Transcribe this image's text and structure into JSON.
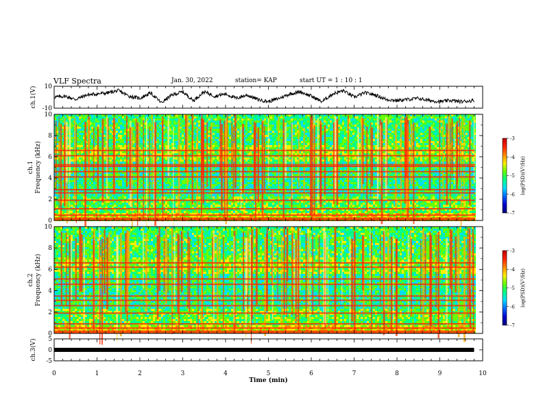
{
  "header": {
    "title": "VLF Spectra",
    "date": "Jan. 30, 2022",
    "station": "station= KAP",
    "start": "start  UT =   1  : 10 : 1"
  },
  "colorbar": {
    "label": "log(PSD)(V²/Hz)",
    "ticks": [
      "-3",
      "-4",
      "-5",
      "-6",
      "-7"
    ],
    "colors": [
      "#c00000",
      "#ff2000",
      "#ff8800",
      "#ffee00",
      "#66ff00",
      "#00ff88",
      "#00ddff",
      "#0066ff",
      "#0000cc",
      "#00007a"
    ]
  },
  "chart_data": [
    {
      "type": "line",
      "ylabel": "ch.1(V)",
      "ylim": [
        -10,
        10
      ],
      "yticks": [
        "10",
        "-10"
      ],
      "xlim": [
        0,
        10
      ],
      "x": [
        0,
        0.25,
        0.5,
        0.75,
        1,
        1.25,
        1.5,
        1.75,
        2,
        2.25,
        2.5,
        2.75,
        3,
        3.25,
        3.5,
        3.75,
        4,
        4.25,
        4.5,
        4.75,
        5,
        5.25,
        5.5,
        5.75,
        6,
        6.25,
        6.5,
        6.75,
        7,
        7.25,
        7.5,
        7.75,
        8,
        8.25,
        8.5,
        8.75,
        9,
        9.25,
        9.5,
        9.8
      ],
      "values": [
        0,
        1,
        -2,
        2,
        3,
        4,
        6,
        1,
        -1,
        4,
        -5,
        2,
        5,
        -3,
        5,
        1,
        3,
        -1,
        2,
        -2,
        -4,
        -1,
        3,
        5,
        1,
        -4,
        3,
        6,
        0,
        4,
        2,
        -2,
        -3,
        -2,
        -1,
        -3,
        -4,
        -3,
        -4,
        -3
      ]
    },
    {
      "type": "heatmap",
      "ylabel": "ch.1  Frequency  (kHz)",
      "ylim": [
        0,
        10
      ],
      "yticks": [
        "10",
        "8",
        "6",
        "4",
        "2",
        "0"
      ],
      "xlim": [
        0,
        10
      ],
      "bands_khz": [
        0.5,
        1.1,
        1.9,
        2.6,
        2.9,
        4.1,
        4.6,
        5.1,
        5.25,
        6.1,
        6.6
      ]
    },
    {
      "type": "heatmap",
      "ylabel": "ch.2  Frequency  (kHz)",
      "ylim": [
        0,
        10
      ],
      "yticks": [
        "10",
        "8",
        "6",
        "4",
        "2",
        "0"
      ],
      "xlim": [
        0,
        10
      ],
      "bands_khz": [
        0.5,
        0.9,
        1.9,
        2.6,
        3.1,
        3.5,
        4.6,
        5.1,
        6.2,
        6.6
      ]
    },
    {
      "type": "line",
      "ylabel": "ch.3(V)",
      "ylim": [
        -5,
        5
      ],
      "yticks": [
        "5",
        "0",
        "-5"
      ],
      "xlim": [
        0,
        10
      ],
      "x": [
        0,
        9.8
      ],
      "values": [
        0,
        0
      ]
    }
  ],
  "xaxis": {
    "label": "Time  (min)",
    "ticks": [
      "0",
      "1",
      "2",
      "3",
      "4",
      "5",
      "6",
      "7",
      "8",
      "9",
      "10"
    ]
  }
}
